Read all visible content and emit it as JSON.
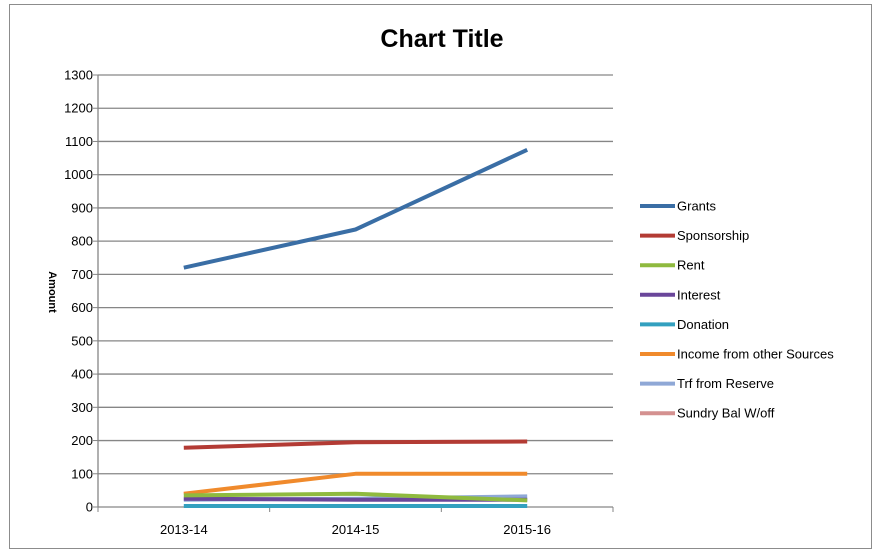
{
  "chart_data": {
    "type": "line",
    "title": "Chart Title",
    "xlabel": "",
    "ylabel": "Amount",
    "categories": [
      "2013-14",
      "2014-15",
      "2015-16"
    ],
    "ylim": [
      0,
      1300
    ],
    "ytick_step": 100,
    "y_ticks": [
      "0",
      "100",
      "200",
      "300",
      "400",
      "500",
      "600",
      "700",
      "800",
      "900",
      "1000",
      "1100",
      "1200",
      "1300"
    ],
    "grid": true,
    "legend_position": "right",
    "series": [
      {
        "name": "Grants",
        "color": "#3a6ea5",
        "values": [
          720,
          835,
          1075
        ]
      },
      {
        "name": "Sponsorship",
        "color": "#b33b34",
        "values": [
          178,
          195,
          197
        ]
      },
      {
        "name": "Rent",
        "color": "#8fba3f",
        "values": [
          35,
          40,
          20
        ]
      },
      {
        "name": "Interest",
        "color": "#6a469a",
        "values": [
          25,
          22,
          22
        ]
      },
      {
        "name": "Donation",
        "color": "#33a0bf",
        "values": [
          3,
          3,
          3
        ]
      },
      {
        "name": "Income from other Sources",
        "color": "#f08a2c",
        "values": [
          40,
          100,
          100
        ]
      },
      {
        "name": "Trf from Reserve",
        "color": "#8fa8d6",
        "values": [
          22,
          25,
          32
        ]
      },
      {
        "name": "Sundry Bal W/off",
        "color": "#d49190",
        "values": [
          null,
          null,
          null
        ]
      }
    ]
  }
}
